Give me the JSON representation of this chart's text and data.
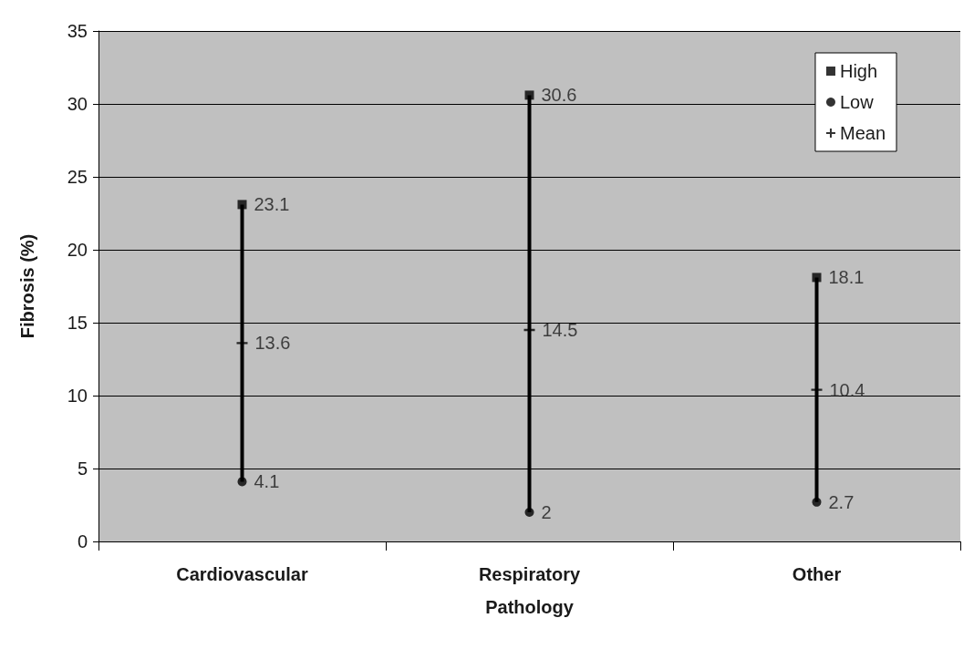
{
  "chart_data": {
    "type": "scatter",
    "xlabel": "Pathology",
    "ylabel": "Fibrosis (%)",
    "categories": [
      "Cardiovascular",
      "Respiratory",
      "Other"
    ],
    "series": [
      {
        "type": "line",
        "color": "#000000",
        "x": [
          "Cardiovascular",
          "Cardiovascular"
        ],
        "values": [
          4.1,
          23.1
        ],
        "marker": "none"
      },
      {
        "type": "line",
        "color": "#000000",
        "x": [
          "Respiratory",
          "Respiratory"
        ],
        "values": [
          2,
          30.6
        ],
        "marker": "none"
      },
      {
        "type": "line",
        "color": "#000000",
        "x": [
          "Other",
          "Other"
        ],
        "values": [
          2.7,
          18.1
        ],
        "marker": "none"
      },
      {
        "name": "High",
        "color": "#000000",
        "marker": "square",
        "values": [
          23.1,
          30.6,
          18.1
        ],
        "value_labels": [
          "23.1",
          "30.6",
          "18.1"
        ]
      },
      {
        "name": "Low",
        "color": "#000000",
        "marker": "circle",
        "values": [
          4.1,
          2,
          2.7
        ],
        "value_labels": [
          "4.1",
          "2",
          "2.7"
        ]
      },
      {
        "name": "Mean",
        "color": "#000000",
        "marker": "cross",
        "values": [
          13.6,
          14.5,
          10.4
        ],
        "value_labels": [
          "13.6",
          "14.5",
          "10.4"
        ]
      }
    ],
    "ylim": [
      0,
      35
    ],
    "yticks": [
      0,
      5,
      10,
      15,
      20,
      25,
      30,
      35
    ],
    "grid": "y",
    "legend": "top right"
  }
}
